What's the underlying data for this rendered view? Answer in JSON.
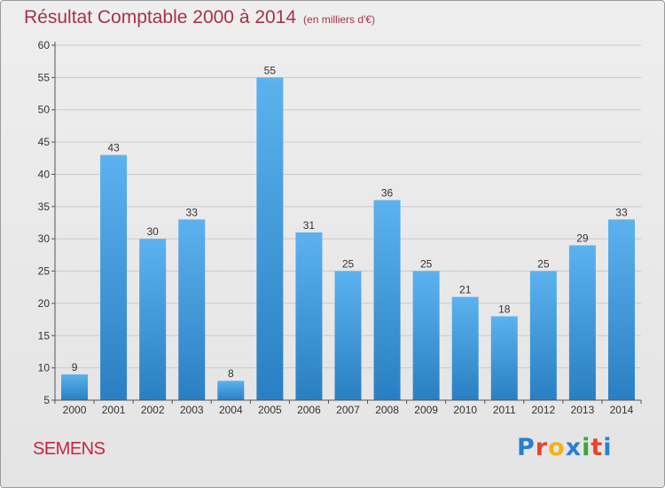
{
  "header": {
    "title": "Résultat Comptable 2000 à 2014",
    "unit": "(en milliers d'€)"
  },
  "footer": {
    "commune": "SEMENS",
    "brand": "Proxiti",
    "brand_colors": [
      "#2b7fd0",
      "#e8452c",
      "#f2b21b",
      "#2b7fd0",
      "#3aa63a",
      "#e8452c",
      "#2b7fd0"
    ]
  },
  "colors": {
    "bar_light": "#5cb2ee",
    "bar_dark": "#2a7fc2",
    "axis": "#555555",
    "grid": "#c9c9c9",
    "text": "#333333"
  },
  "chart_data": {
    "type": "bar",
    "title": "Résultat Comptable 2000 à 2014",
    "subtitle": "(en milliers d'€)",
    "xlabel": "",
    "ylabel": "",
    "categories": [
      "2000",
      "2001",
      "2002",
      "2003",
      "2004",
      "2005",
      "2006",
      "2007",
      "2008",
      "2009",
      "2010",
      "2011",
      "2012",
      "2013",
      "2014"
    ],
    "values": [
      9,
      43,
      30,
      33,
      8,
      55,
      31,
      25,
      36,
      25,
      21,
      18,
      25,
      29,
      33
    ],
    "ylim": [
      5,
      60
    ],
    "yticks": [
      5,
      10,
      15,
      20,
      25,
      30,
      35,
      40,
      45,
      50,
      55,
      60
    ],
    "grid": true,
    "data_labels": true
  }
}
